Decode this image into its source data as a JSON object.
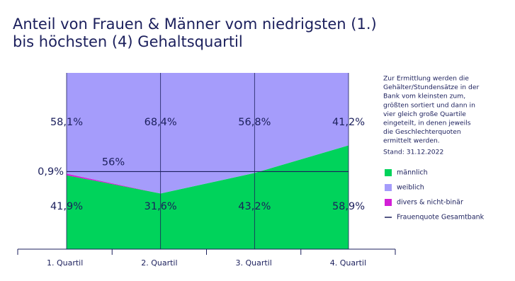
{
  "chart_data": {
    "type": "stacked_area",
    "title": [
      "Anteil von Frauen & Männer vom niedrigsten (1.)",
      "bis höchsten (4) Gehaltsquartil"
    ],
    "categories": [
      "1. Quartil",
      "2. Quartil",
      "3. Quartil",
      "4. Quartil"
    ],
    "ylim": [
      0,
      100
    ],
    "series": [
      {
        "name": "männlich",
        "color": "#00d35b",
        "values": [
          41.9,
          31.6,
          43.2,
          58.9
        ],
        "value_labels": [
          "41,9%",
          "31,6%",
          "43,2%",
          "58,9%"
        ]
      },
      {
        "name": "divers & nicht-binär",
        "color": "#d21fd6",
        "values": [
          0.9,
          0,
          0,
          0
        ],
        "value_labels": [
          "0,9%",
          null,
          null,
          null
        ]
      },
      {
        "name": "weiblich",
        "color": "#a59cfb",
        "values": [
          58.1,
          68.4,
          56.8,
          41.2
        ],
        "value_labels": [
          "58,1%",
          "68,4%",
          "56,8%",
          "41,2%"
        ]
      }
    ],
    "legend_order": [
      0,
      2,
      1
    ],
    "reference_line": {
      "name": "Frauenquote Gesamtbank",
      "value": 56,
      "value_label": "56%",
      "color": "#1b1f5c"
    },
    "note": [
      "Zur Ermittlung werden die",
      "Gehälter/Stundensätze in der",
      "Bank vom kleinsten zum,",
      "größten sortiert und dann in",
      "vier gleich große Quartile",
      "eingeteilt, in denen jeweils",
      "die Geschlechterquoten",
      "ermittelt werden."
    ],
    "date_note": "Stand: 31.12.2022"
  }
}
